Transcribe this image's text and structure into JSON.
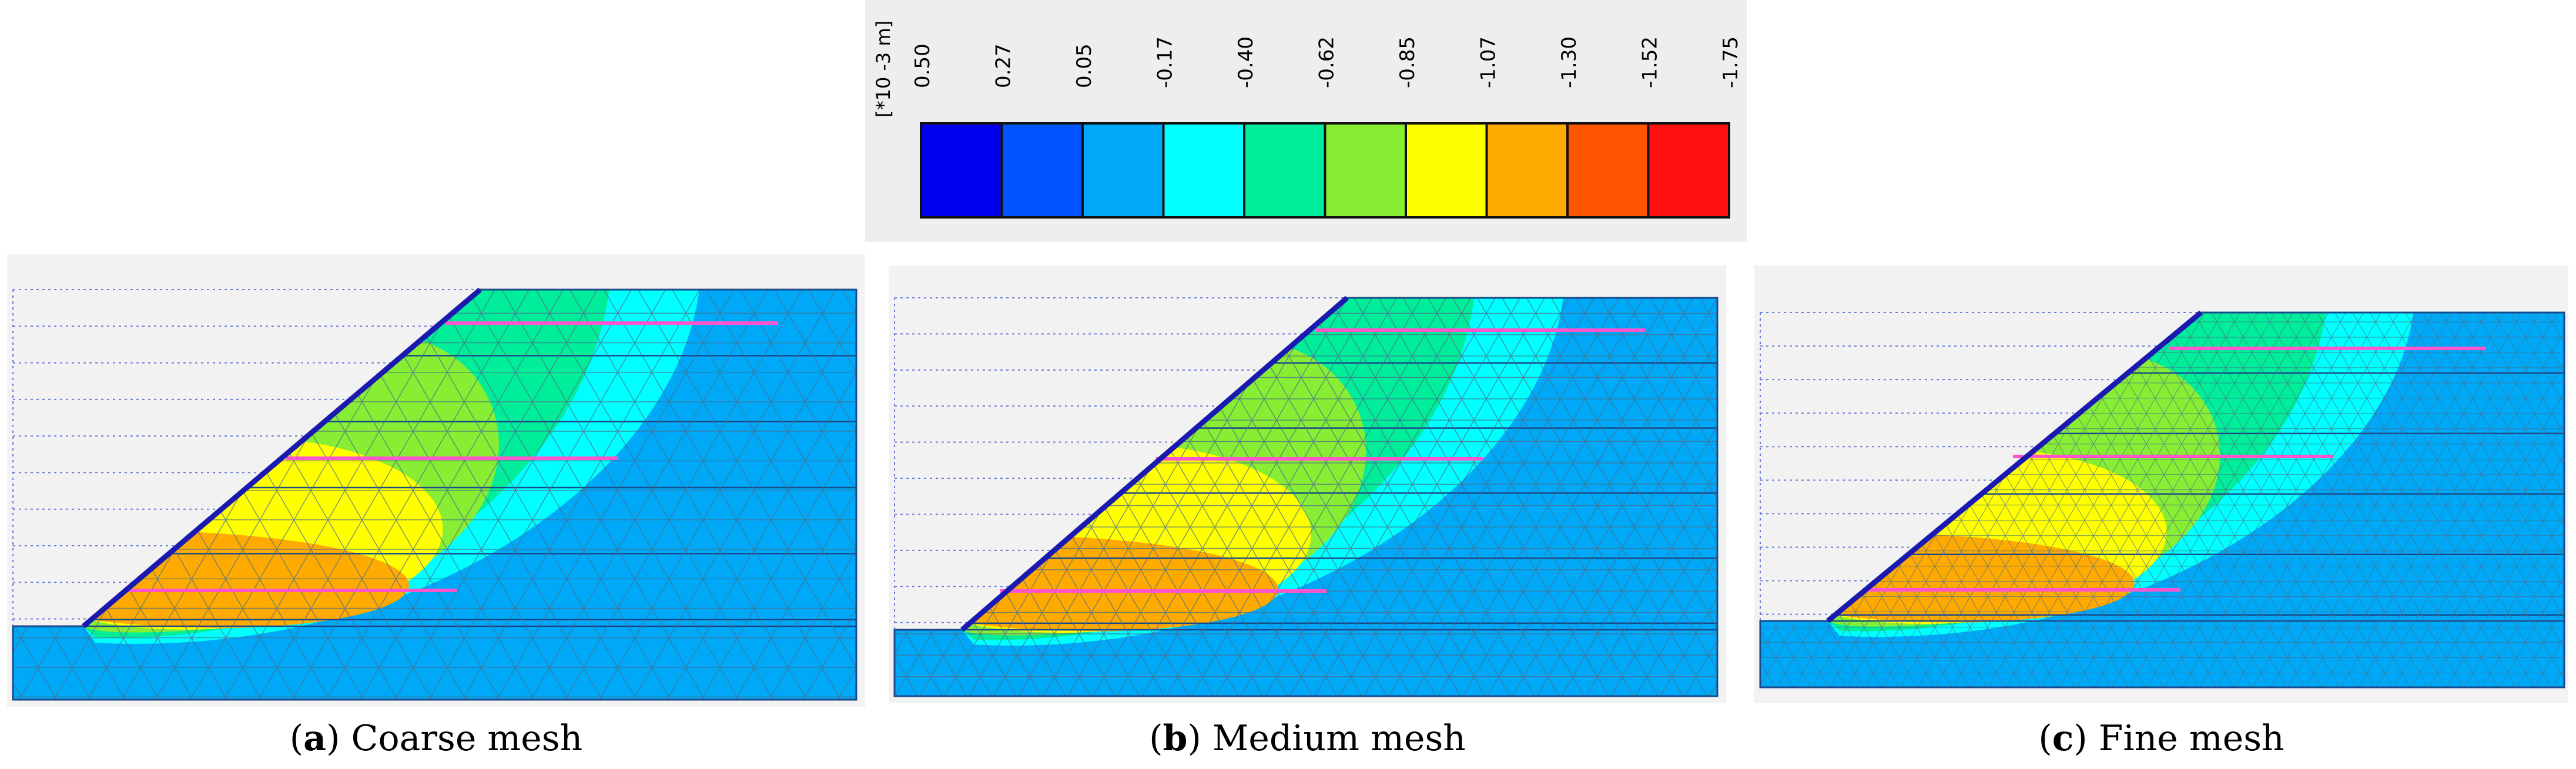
{
  "legend": {
    "unit_label": "[*10 -3 m]",
    "tick_labels": [
      "0.50",
      "0.27",
      "0.05",
      "-0.17",
      "-0.40",
      "-0.62",
      "-0.85",
      "-1.07",
      "-1.30",
      "-1.52",
      "-1.75"
    ],
    "colors": [
      "#0000ee",
      "#0055ff",
      "#00a8f8",
      "#00ffff",
      "#00ee99",
      "#88ee33",
      "#ffff00",
      "#ffaa00",
      "#ff5500",
      "#ff1111"
    ]
  },
  "panels": [
    {
      "id": "a",
      "mesh": "coarse",
      "caption_letter": "a",
      "caption_text": "Coarse mesh"
    },
    {
      "id": "b",
      "mesh": "medium",
      "caption_letter": "b",
      "caption_text": "Medium mesh"
    },
    {
      "id": "c",
      "mesh": "fine",
      "caption_letter": "c",
      "caption_text": "Fine mesh"
    }
  ],
  "colors": {
    "soil_base": "#00a8f8",
    "mesh_line": "#4a6f8a",
    "facing": "#1a1ab0",
    "nail": "#ff55cc"
  }
}
